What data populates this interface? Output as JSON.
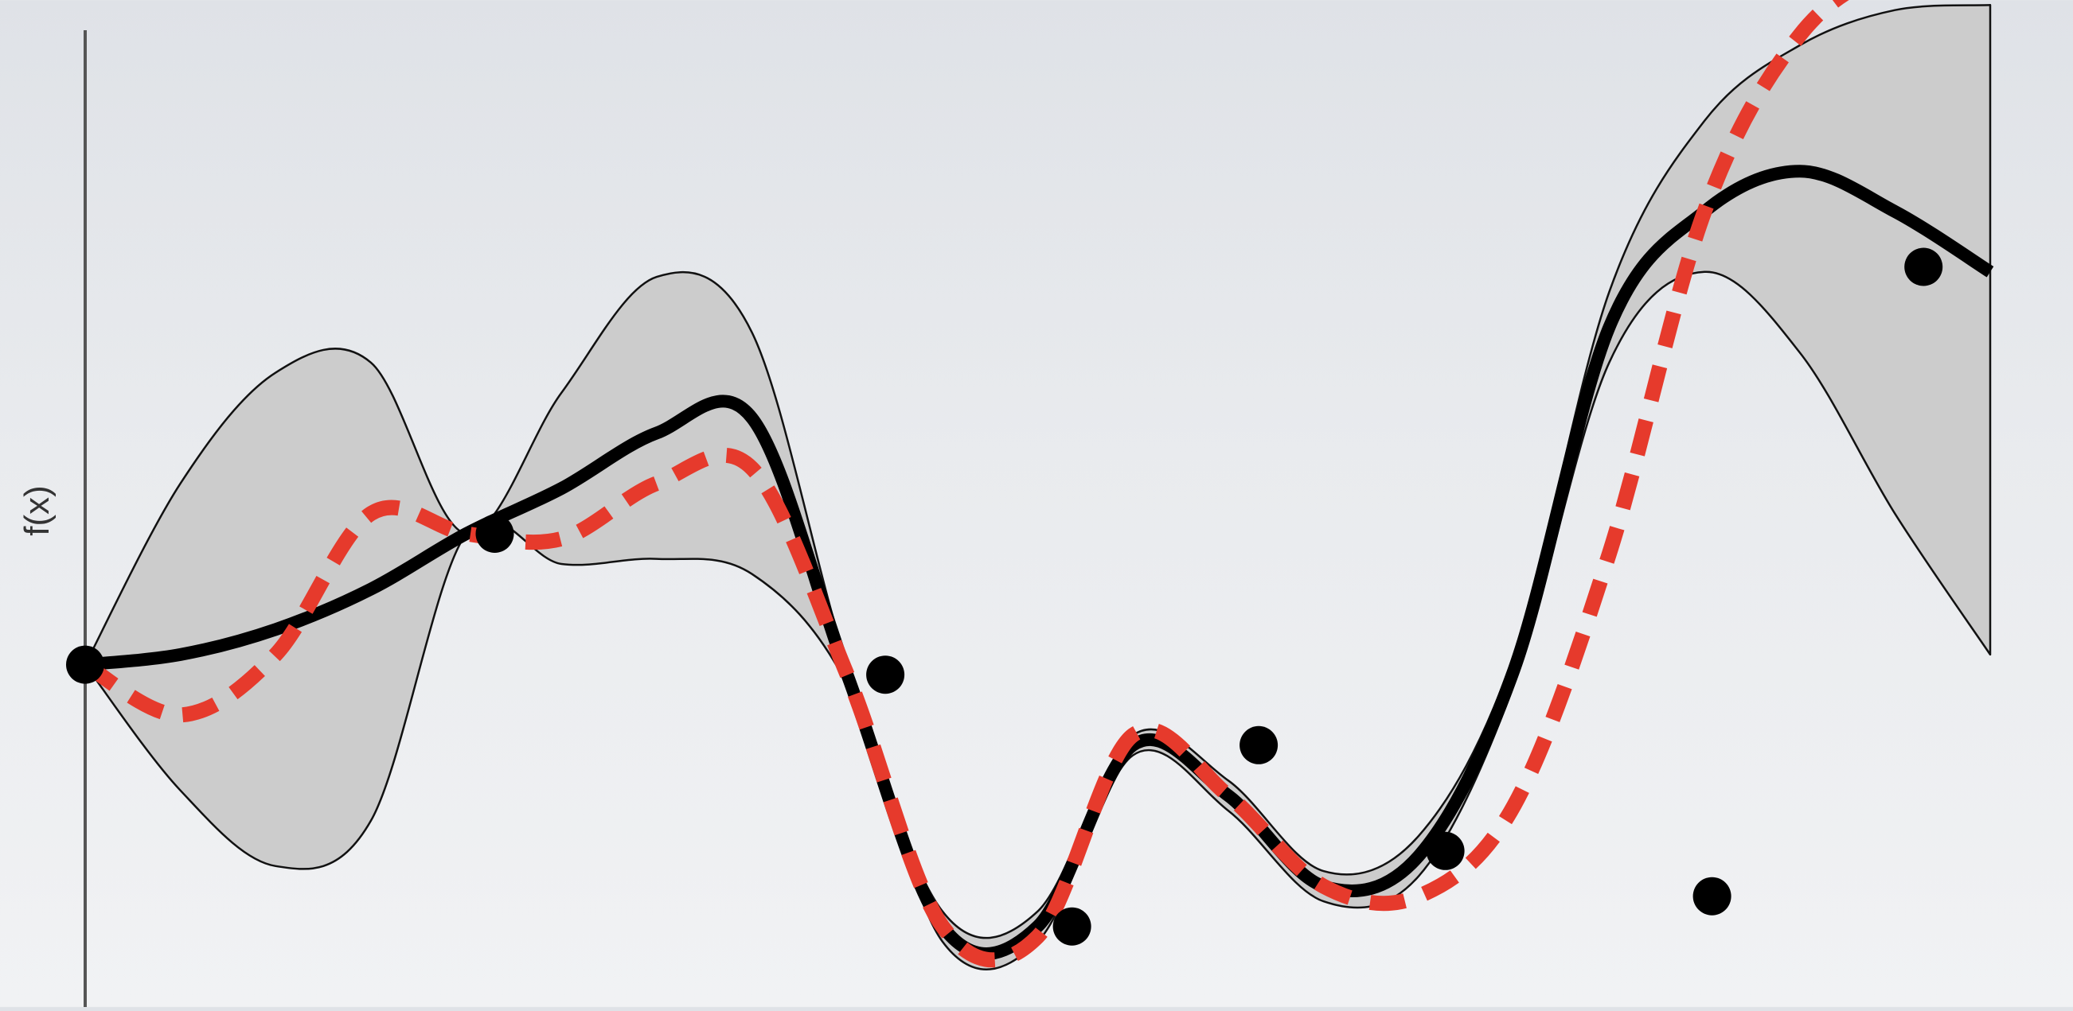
{
  "chart_data": {
    "type": "line",
    "title": "",
    "xlabel": "",
    "ylabel": "f(x)",
    "xlim": [
      0,
      1
    ],
    "ylim": [
      -1.0,
      1.0
    ],
    "grid": false,
    "legend": "none",
    "colors": {
      "mean": "#000000",
      "true_function": "#e63a2c",
      "band_fill": "#cccccc",
      "band_edge": "#111111",
      "axis": "#555555"
    },
    "series": [
      {
        "role": "posterior-mean",
        "style": "solid",
        "x": [
          0.0,
          0.05,
          0.1,
          0.15,
          0.2,
          0.25,
          0.3,
          0.35,
          0.4,
          0.45,
          0.5,
          0.55,
          0.6,
          0.65,
          0.7,
          0.75,
          0.8,
          0.85,
          0.9,
          0.95,
          1.0
        ],
        "y": [
          -0.32,
          -0.3,
          -0.25,
          -0.17,
          -0.06,
          0.03,
          0.14,
          0.17,
          -0.34,
          -0.84,
          -0.84,
          -0.48,
          -0.58,
          -0.76,
          -0.7,
          -0.33,
          0.35,
          0.58,
          0.66,
          0.58,
          0.46
        ]
      },
      {
        "role": "true-function",
        "style": "dashed",
        "x": [
          0.0,
          0.05,
          0.1,
          0.15,
          0.2,
          0.25,
          0.3,
          0.35,
          0.4,
          0.45,
          0.5,
          0.55,
          0.6,
          0.65,
          0.7,
          0.75,
          0.8,
          0.85,
          0.9,
          0.95,
          1.0
        ],
        "y": [
          -0.32,
          -0.42,
          -0.3,
          -0.02,
          -0.06,
          -0.07,
          0.04,
          0.07,
          -0.34,
          -0.84,
          -0.86,
          -0.46,
          -0.58,
          -0.76,
          -0.78,
          -0.6,
          -0.1,
          0.58,
          0.93,
          1.06,
          1.08
        ]
      }
    ],
    "confidence_band": {
      "x": [
        0.0,
        0.05,
        0.1,
        0.15,
        0.2,
        0.25,
        0.3,
        0.35,
        0.4,
        0.45,
        0.5,
        0.55,
        0.6,
        0.65,
        0.7,
        0.75,
        0.8,
        0.85,
        0.9,
        0.95,
        1.0
      ],
      "lower": [
        -0.32,
        -0.57,
        -0.72,
        -0.63,
        -0.06,
        -0.12,
        -0.11,
        -0.14,
        -0.36,
        -0.87,
        -0.87,
        -0.5,
        -0.61,
        -0.79,
        -0.74,
        -0.36,
        0.28,
        0.46,
        0.3,
        -0.02,
        -0.3
      ],
      "upper": [
        -0.32,
        0.04,
        0.26,
        0.28,
        -0.06,
        0.22,
        0.45,
        0.34,
        -0.32,
        -0.81,
        -0.81,
        -0.46,
        -0.55,
        -0.73,
        -0.66,
        -0.3,
        0.42,
        0.76,
        0.91,
        0.98,
        0.99
      ]
    },
    "observations": {
      "x": [
        0.0,
        0.215,
        0.42,
        0.518,
        0.616,
        0.714,
        0.854,
        0.965
      ],
      "y": [
        -0.32,
        -0.06,
        -0.34,
        -0.84,
        -0.48,
        -0.69,
        -0.78,
        0.47
      ]
    }
  }
}
